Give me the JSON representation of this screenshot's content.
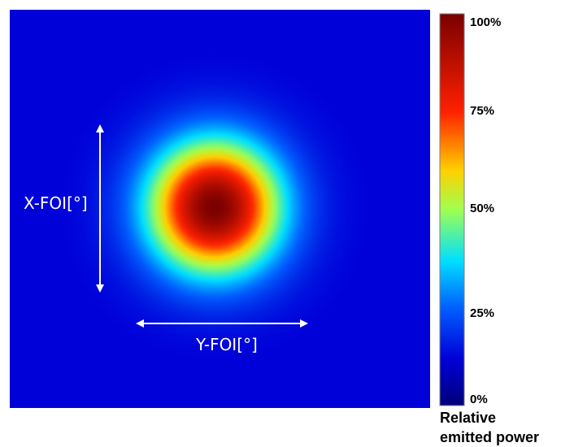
{
  "chart_data": {
    "type": "heatmap",
    "title": "",
    "x_axis_label": "Y-FOI[°]",
    "y_axis_label": "X-FOI[°]",
    "colorbar": {
      "title_lines": [
        "Relative",
        "emitted power"
      ],
      "ticks": [
        {
          "label": "100%",
          "value": 100
        },
        {
          "label": "75%",
          "value": 75
        },
        {
          "label": "50%",
          "value": 50
        },
        {
          "label": "25%",
          "value": 25
        },
        {
          "label": "0%",
          "value": 0
        }
      ],
      "range": [
        0,
        100
      ],
      "colormap_stops": [
        {
          "value": 0,
          "color": "#00007a"
        },
        {
          "value": 12,
          "color": "#0000d8"
        },
        {
          "value": 25,
          "color": "#0060ff"
        },
        {
          "value": 37,
          "color": "#00e0ff"
        },
        {
          "value": 50,
          "color": "#a0ff50"
        },
        {
          "value": 60,
          "color": "#ffd000"
        },
        {
          "value": 75,
          "color": "#ff2000"
        },
        {
          "value": 100,
          "color": "#7a0000"
        }
      ]
    },
    "background_level_percent": 12,
    "peak_level_percent": 100
  }
}
